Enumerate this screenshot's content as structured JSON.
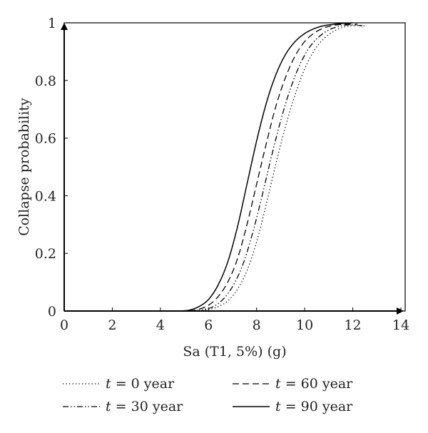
{
  "chart_data": {
    "type": "line",
    "title": "",
    "xlabel": "Sa (T1, 5%) (g)",
    "ylabel": "Collapse probability",
    "xlim": [
      0,
      14
    ],
    "ylim": [
      0,
      1
    ],
    "x_ticks": [
      "0",
      "2",
      "4",
      "6",
      "8",
      "10",
      "12",
      "14"
    ],
    "y_ticks": [
      "0",
      "0.2",
      "0.4",
      "0.6",
      "0.8",
      "1"
    ],
    "grid": false,
    "legend_position": "bottom",
    "series": [
      {
        "name_var": "t",
        "name_rest": "= 0 year",
        "style": "dotted",
        "x": [
          5.6,
          6.0,
          6.4,
          6.8,
          7.2,
          7.6,
          8.0,
          8.4,
          8.8,
          9.2,
          9.6,
          10.0,
          10.4,
          10.8,
          11.2,
          11.6,
          12.0,
          12.5
        ],
        "y": [
          0.0,
          0.005,
          0.015,
          0.035,
          0.075,
          0.14,
          0.24,
          0.37,
          0.51,
          0.64,
          0.75,
          0.84,
          0.905,
          0.945,
          0.97,
          0.985,
          0.99,
          0.99
        ]
      },
      {
        "name_var": "t",
        "name_rest": "= 30 year",
        "style": "dashdotdot",
        "x": [
          5.4,
          5.8,
          6.2,
          6.6,
          7.0,
          7.4,
          7.8,
          8.2,
          8.6,
          9.0,
          9.4,
          9.8,
          10.2,
          10.6,
          11.0,
          11.4,
          11.8,
          12.4
        ],
        "y": [
          0.0,
          0.005,
          0.015,
          0.04,
          0.085,
          0.155,
          0.26,
          0.39,
          0.53,
          0.66,
          0.77,
          0.855,
          0.915,
          0.952,
          0.975,
          0.987,
          0.993,
          0.99
        ]
      },
      {
        "name_var": "t",
        "name_rest": "= 60 year",
        "style": "dashed",
        "x": [
          5.2,
          5.6,
          6.0,
          6.4,
          6.8,
          7.2,
          7.6,
          8.0,
          8.4,
          8.8,
          9.2,
          9.6,
          10.0,
          10.4,
          10.8,
          11.2,
          11.6,
          12.2
        ],
        "y": [
          0.0,
          0.006,
          0.02,
          0.05,
          0.1,
          0.18,
          0.3,
          0.44,
          0.58,
          0.71,
          0.81,
          0.885,
          0.935,
          0.965,
          0.982,
          0.991,
          0.995,
          0.995
        ]
      },
      {
        "name_var": "t",
        "name_rest": "= 90 year",
        "style": "solid",
        "x": [
          4.8,
          5.2,
          5.6,
          6.0,
          6.4,
          6.8,
          7.2,
          7.6,
          8.0,
          8.4,
          8.8,
          9.2,
          9.6,
          10.0,
          10.4,
          10.8,
          11.2,
          11.6,
          12.0
        ],
        "y": [
          0.0,
          0.003,
          0.015,
          0.04,
          0.09,
          0.17,
          0.29,
          0.44,
          0.59,
          0.72,
          0.82,
          0.89,
          0.935,
          0.963,
          0.98,
          0.99,
          0.995,
          0.998,
          1.0
        ]
      }
    ]
  }
}
